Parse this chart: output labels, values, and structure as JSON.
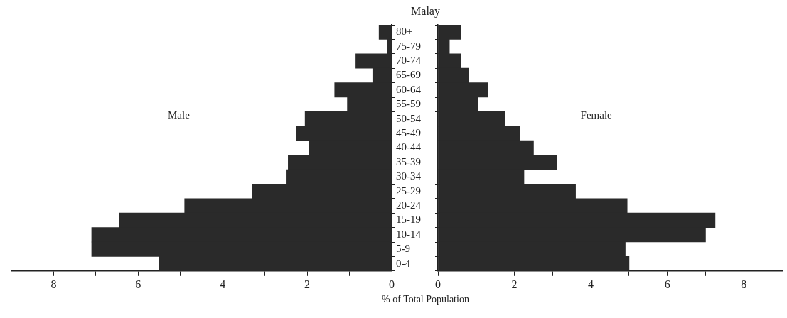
{
  "chart_data": [
    {
      "type": "bar",
      "orientation": "horizontal",
      "title": "Malay",
      "xlabel": "% of Total Population",
      "categories": [
        "80+",
        "75-79",
        "70-74",
        "65-69",
        "60-64",
        "55-59",
        "50-54",
        "45-49",
        "40-44",
        "35-39",
        "30-34",
        "25-29",
        "20-24",
        "15-19",
        "10-14",
        "5-9",
        "0-4"
      ],
      "series": [
        {
          "name": "Male",
          "color": "#2a2a2a",
          "values": [
            0.3,
            0.1,
            0.85,
            0.45,
            1.35,
            1.05,
            2.05,
            2.25,
            1.95,
            2.45,
            2.5,
            3.3,
            4.9,
            6.45,
            7.1,
            7.1,
            5.5
          ]
        }
      ],
      "xlim": [
        9,
        0
      ],
      "xticks": [
        0,
        {
          "value": 1,
          "label": null
        },
        2,
        {
          "value": 3,
          "label": null
        },
        4,
        {
          "value": 5,
          "label": null
        },
        6,
        {
          "value": 7,
          "label": null
        },
        8
      ]
    },
    {
      "type": "bar",
      "orientation": "horizontal",
      "categories": [
        null,
        null,
        null,
        null,
        null,
        null,
        null,
        null,
        null,
        null,
        null,
        null,
        null,
        null,
        null,
        null,
        null
      ],
      "series": [
        {
          "name": "Female",
          "color": "#2a2a2a",
          "values": [
            0.6,
            0.3,
            0.6,
            0.8,
            1.3,
            1.05,
            1.75,
            2.15,
            2.5,
            3.1,
            2.25,
            3.6,
            4.95,
            7.25,
            7.0,
            4.9,
            5.0
          ]
        }
      ],
      "xlim": [
        0,
        9
      ],
      "xticks": [
        0,
        {
          "value": 1,
          "label": null
        },
        2,
        {
          "value": 3,
          "label": null
        },
        4,
        {
          "value": 5,
          "label": null
        },
        6,
        {
          "value": 7,
          "label": null
        },
        8
      ]
    }
  ]
}
